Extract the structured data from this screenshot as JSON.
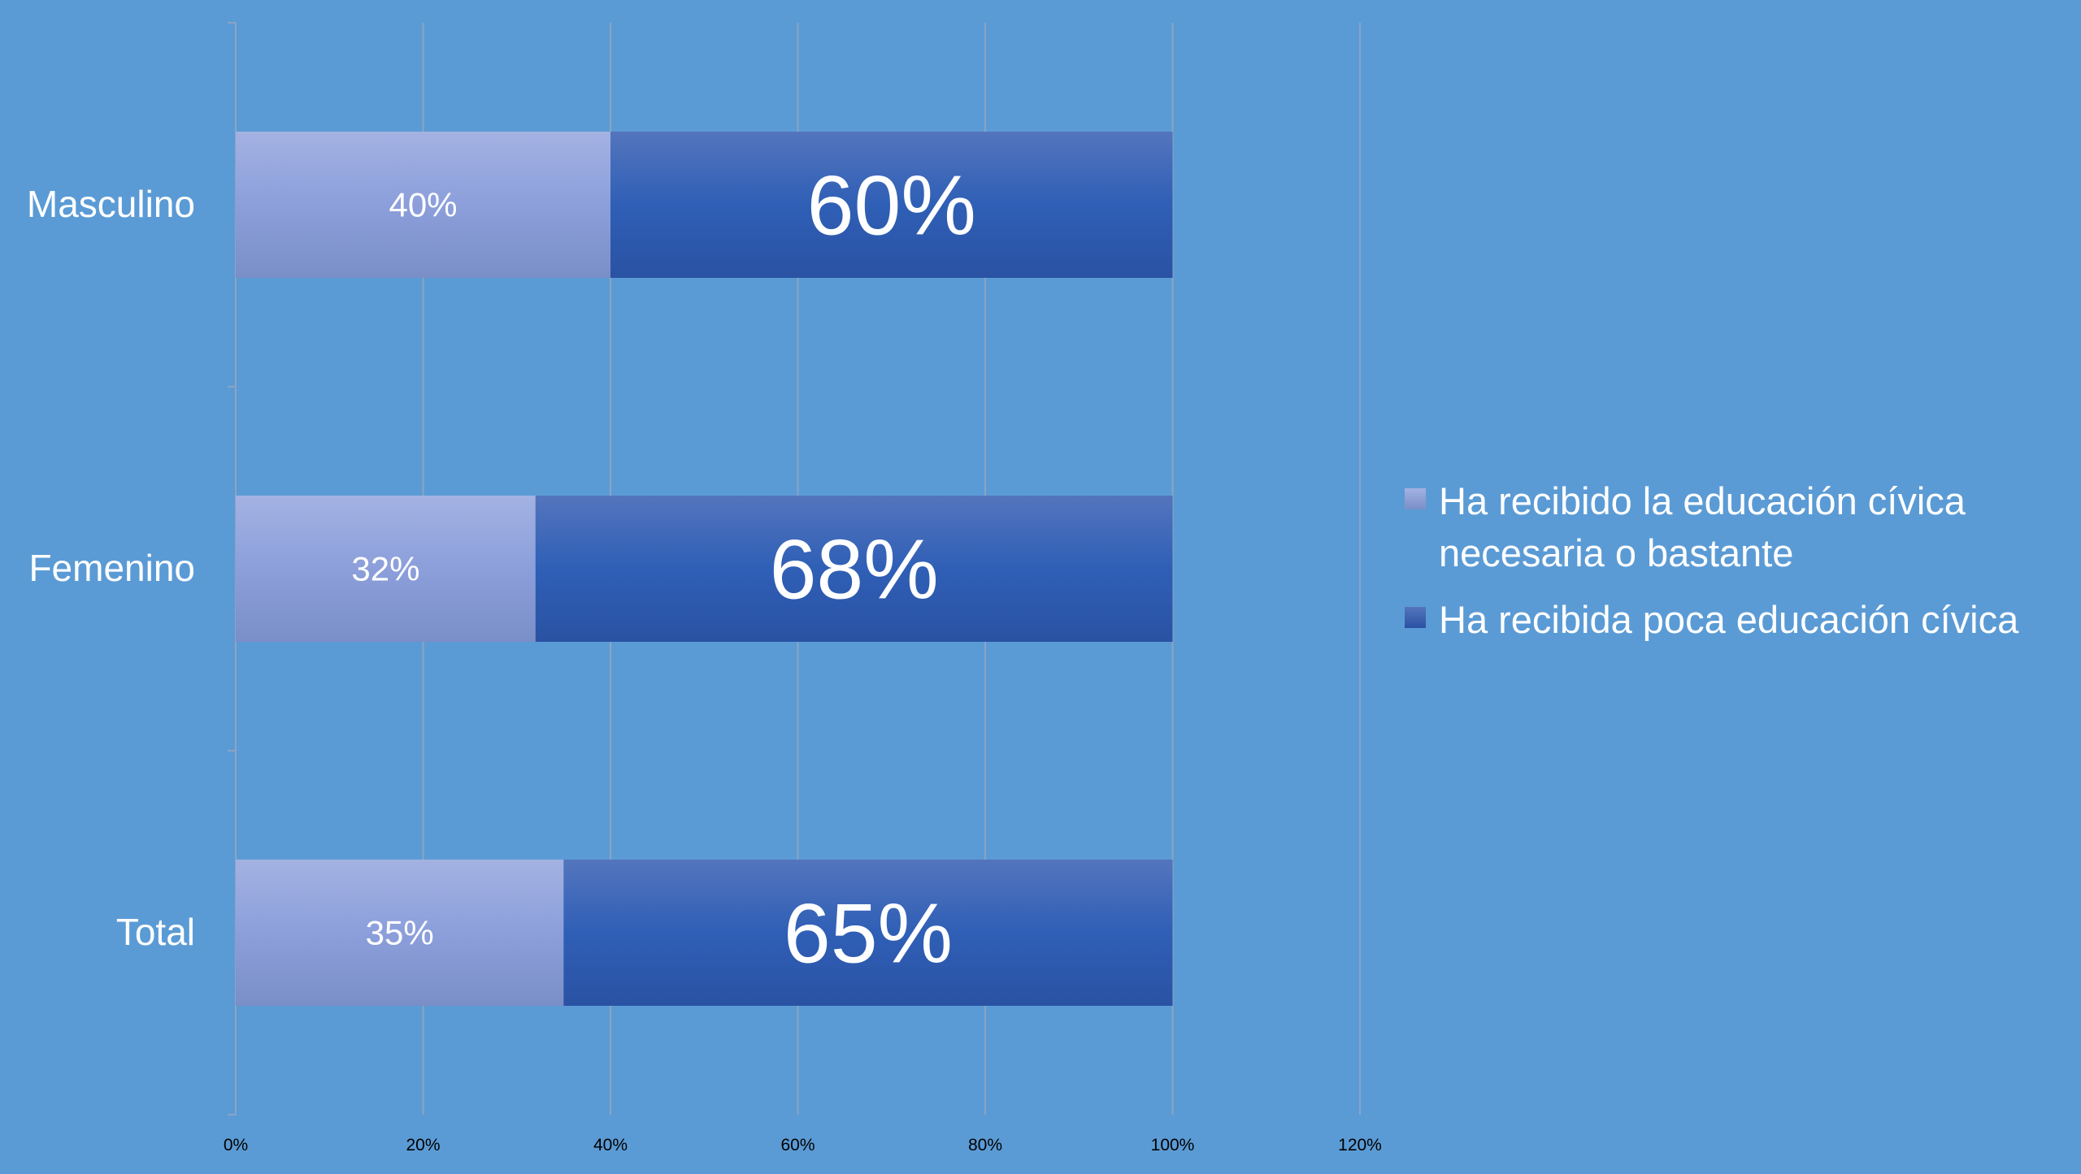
{
  "chart_data": {
    "type": "bar",
    "orientation": "horizontal",
    "stacked": true,
    "categories": [
      "Masculino",
      "Femenino",
      "Total"
    ],
    "series": [
      {
        "name": "Ha recibido la educación cívica necesaria o bastante",
        "values": [
          40,
          32,
          35
        ],
        "labels": [
          "40%",
          "32%",
          "35%"
        ],
        "color": "#8e9fd6"
      },
      {
        "name": "Ha recibida poca educación cívica",
        "values": [
          60,
          68,
          65
        ],
        "labels": [
          "60%",
          "68%",
          "65%"
        ],
        "color": "#2f5cb0"
      }
    ],
    "x_ticks": [
      "0%",
      "20%",
      "40%",
      "60%",
      "80%",
      "100%",
      "120%"
    ],
    "xlim": [
      0,
      120
    ],
    "grid": true,
    "legend_position": "right",
    "title": "",
    "xlabel": "",
    "ylabel": "",
    "background": "#5b9bd5"
  }
}
